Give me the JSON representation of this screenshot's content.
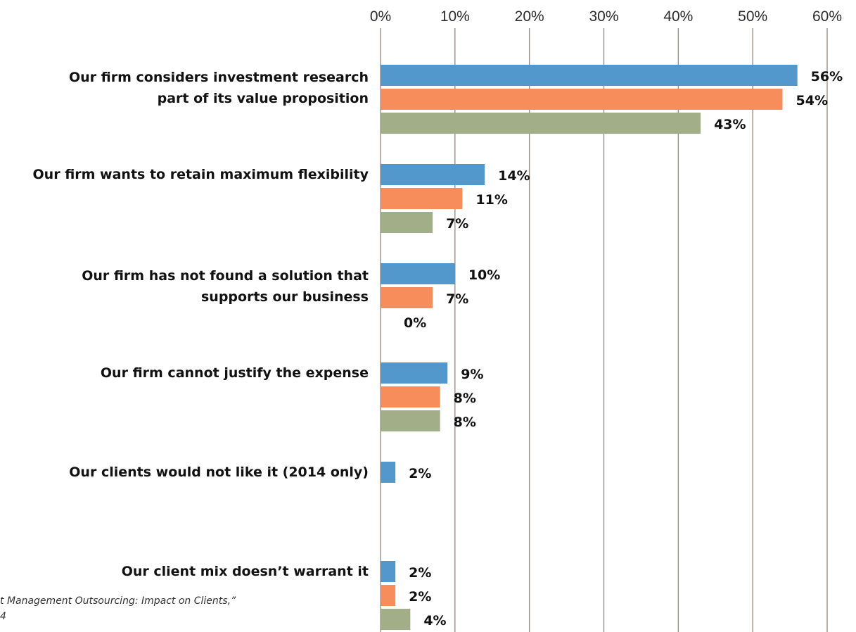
{
  "chart_data": {
    "type": "bar",
    "orientation": "horizontal",
    "title": "",
    "xlabel": "",
    "ylabel": "",
    "xlim": [
      0,
      60
    ],
    "x_ticks": [
      "0%",
      "10%",
      "20%",
      "30%",
      "40%",
      "50%",
      "60%"
    ],
    "grid": true,
    "legend": "none",
    "categories": [
      [
        "Our firm considers investment research",
        "part of its value proposition"
      ],
      [
        "Our firm wants to retain maximum flexibility"
      ],
      [
        "Our firm has not found a solution that",
        "supports our business"
      ],
      [
        "Our firm cannot justify the expense"
      ],
      [
        "Our clients would not like it (2014 only)"
      ],
      [
        "Our client mix doesn’t warrant it"
      ]
    ],
    "series": [
      {
        "color": "#5298cc",
        "values": [
          56,
          14,
          10,
          9,
          2,
          2
        ]
      },
      {
        "color": "#f68d5a",
        "values": [
          54,
          11,
          7,
          8,
          null,
          2
        ]
      },
      {
        "color": "#a1ae87",
        "values": [
          43,
          7,
          0,
          8,
          null,
          4
        ]
      }
    ],
    "value_suffix": "%",
    "footnote_lines": [
      "t Management Outsourcing: Impact on Clients,”",
      "4"
    ]
  }
}
